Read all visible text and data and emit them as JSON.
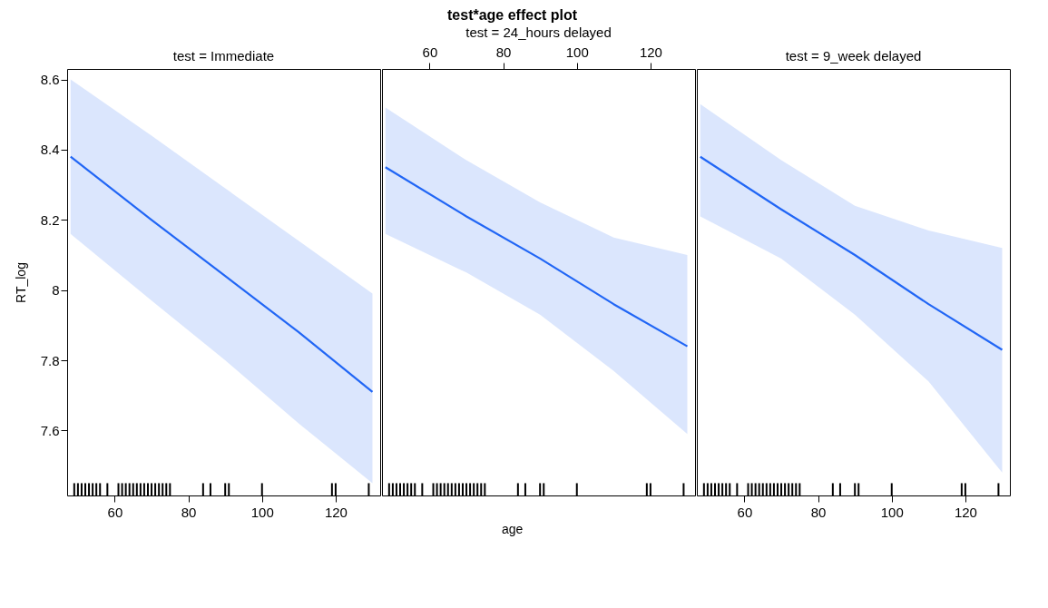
{
  "chart_data": [
    {
      "type": "line",
      "subtitle": "test = Immediate",
      "ylabel": "RT_log",
      "x": [
        48,
        70,
        90,
        110,
        130
      ],
      "xlim": [
        47.07,
        132.1
      ],
      "xticks": [
        60,
        80,
        100,
        120
      ],
      "ylim": [
        7.415,
        8.63
      ],
      "yticks": [
        7.6,
        7.8,
        8.0,
        8.2,
        8.4,
        8.6
      ],
      "grid": false,
      "series": [
        {
          "color": "#2166f5",
          "values": [
            8.38,
            8.2,
            8.04,
            7.88,
            7.71
          ],
          "lower": [
            8.16,
            7.97,
            7.8,
            7.62,
            7.45
          ],
          "upper": [
            8.6,
            8.44,
            8.29,
            8.14,
            7.99
          ]
        },
        {
          "type": "bar",
          "color": "#000000",
          "x": [
            49,
            50,
            51,
            52,
            53,
            54,
            55,
            56,
            58,
            61,
            62,
            63,
            64,
            65,
            66,
            67,
            68,
            69,
            70,
            71,
            72,
            73,
            74,
            75,
            84,
            86,
            90,
            91,
            100,
            119,
            120,
            129
          ],
          "base": [
            7.415,
            7.415,
            7.415,
            7.415,
            7.415,
            7.415,
            7.415,
            7.415,
            7.415,
            7.415,
            7.415,
            7.415,
            7.415,
            7.415,
            7.415,
            7.415,
            7.415,
            7.415,
            7.415,
            7.415,
            7.415,
            7.415,
            7.415,
            7.415,
            7.415,
            7.415,
            7.415,
            7.415,
            7.415,
            7.415,
            7.415,
            7.415
          ],
          "values": [
            0.035,
            0.035,
            0.035,
            0.035,
            0.035,
            0.035,
            0.035,
            0.035,
            0.035,
            0.035,
            0.035,
            0.035,
            0.035,
            0.035,
            0.035,
            0.035,
            0.035,
            0.035,
            0.035,
            0.035,
            0.035,
            0.035,
            0.035,
            0.035,
            0.035,
            0.035,
            0.035,
            0.035,
            0.035,
            0.035,
            0.035,
            0.035
          ]
        }
      ]
    },
    {
      "type": "line",
      "title": "test*age effect plot",
      "subtitle": "test = 24_hours delayed",
      "xlabel": "age",
      "x": [
        48,
        70,
        90,
        110,
        130
      ],
      "xlim": [
        47.07,
        132.1
      ],
      "xticks": [
        60,
        80,
        100,
        120
      ],
      "ylim": [
        7.415,
        8.63
      ],
      "tick_labels": "x",
      "grid": false,
      "series": [
        {
          "color": "#2166f5",
          "values": [
            8.35,
            8.21,
            8.09,
            7.96,
            7.84
          ],
          "lower": [
            8.16,
            8.05,
            7.93,
            7.77,
            7.59
          ],
          "upper": [
            8.52,
            8.37,
            8.25,
            8.15,
            8.1
          ]
        },
        {
          "type": "bar",
          "color": "#000000",
          "x": [
            49,
            50,
            51,
            52,
            53,
            54,
            55,
            56,
            58,
            61,
            62,
            63,
            64,
            65,
            66,
            67,
            68,
            69,
            70,
            71,
            72,
            73,
            74,
            75,
            84,
            86,
            90,
            91,
            100,
            119,
            120,
            129
          ],
          "base": [
            7.415,
            7.415,
            7.415,
            7.415,
            7.415,
            7.415,
            7.415,
            7.415,
            7.415,
            7.415,
            7.415,
            7.415,
            7.415,
            7.415,
            7.415,
            7.415,
            7.415,
            7.415,
            7.415,
            7.415,
            7.415,
            7.415,
            7.415,
            7.415,
            7.415,
            7.415,
            7.415,
            7.415,
            7.415,
            7.415,
            7.415,
            7.415
          ],
          "values": [
            0.035,
            0.035,
            0.035,
            0.035,
            0.035,
            0.035,
            0.035,
            0.035,
            0.035,
            0.035,
            0.035,
            0.035,
            0.035,
            0.035,
            0.035,
            0.035,
            0.035,
            0.035,
            0.035,
            0.035,
            0.035,
            0.035,
            0.035,
            0.035,
            0.035,
            0.035,
            0.035,
            0.035,
            0.035,
            0.035,
            0.035,
            0.035
          ]
        }
      ]
    },
    {
      "type": "line",
      "subtitle": "test = 9_week delayed",
      "x": [
        48,
        70,
        90,
        110,
        130
      ],
      "xlim": [
        47.07,
        132.1
      ],
      "xticks": [
        60,
        80,
        100,
        120
      ],
      "ylim": [
        7.415,
        8.63
      ],
      "tick_labels": "x",
      "grid": false,
      "series": [
        {
          "color": "#2166f5",
          "values": [
            8.38,
            8.23,
            8.1,
            7.96,
            7.83
          ],
          "lower": [
            8.21,
            8.09,
            7.93,
            7.74,
            7.48
          ],
          "upper": [
            8.53,
            8.37,
            8.24,
            8.17,
            8.12
          ]
        },
        {
          "type": "bar",
          "color": "#000000",
          "x": [
            49,
            50,
            51,
            52,
            53,
            54,
            55,
            56,
            58,
            61,
            62,
            63,
            64,
            65,
            66,
            67,
            68,
            69,
            70,
            71,
            72,
            73,
            74,
            75,
            84,
            86,
            90,
            91,
            100,
            119,
            120,
            129
          ],
          "base": [
            7.415,
            7.415,
            7.415,
            7.415,
            7.415,
            7.415,
            7.415,
            7.415,
            7.415,
            7.415,
            7.415,
            7.415,
            7.415,
            7.415,
            7.415,
            7.415,
            7.415,
            7.415,
            7.415,
            7.415,
            7.415,
            7.415,
            7.415,
            7.415,
            7.415,
            7.415,
            7.415,
            7.415,
            7.415,
            7.415,
            7.415,
            7.415
          ],
          "values": [
            0.035,
            0.035,
            0.035,
            0.035,
            0.035,
            0.035,
            0.035,
            0.035,
            0.035,
            0.035,
            0.035,
            0.035,
            0.035,
            0.035,
            0.035,
            0.035,
            0.035,
            0.035,
            0.035,
            0.035,
            0.035,
            0.035,
            0.035,
            0.035,
            0.035,
            0.035,
            0.035,
            0.035,
            0.035,
            0.035,
            0.035,
            0.035
          ]
        }
      ]
    }
  ]
}
